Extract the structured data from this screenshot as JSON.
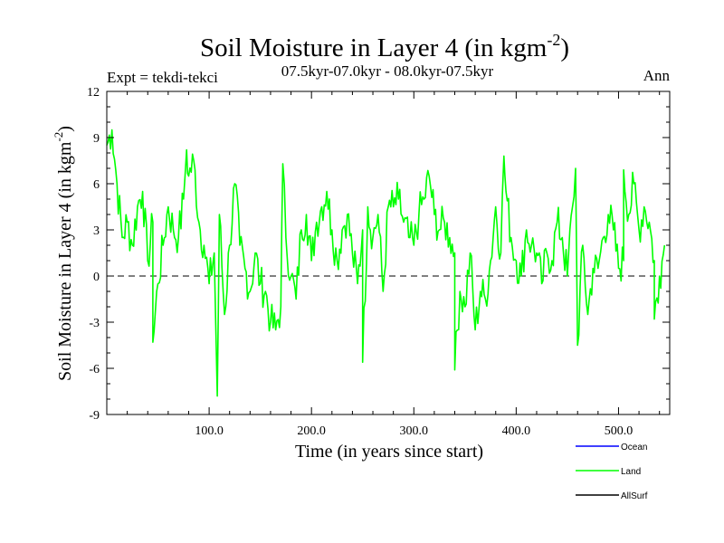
{
  "chart_data": {
    "type": "line",
    "title_main": "Soil Moisture in Layer 4 (in kgm",
    "title_sup": "-2",
    "title_close": ")",
    "subtitle": "07.5kyr-07.0kyr - 08.0kyr-07.5kyr",
    "expt_label": "Expt = tekdi-tekci",
    "season_label": "Ann",
    "xlabel": "Time (in years since start)",
    "ylabel_main": "Soil Moisture in Layer 4 (in kgm",
    "ylabel_sup": "-2",
    "ylabel_close": ")",
    "xlim": [
      0,
      550
    ],
    "ylim": [
      -9,
      12
    ],
    "x_ticks": [
      100,
      200,
      300,
      400,
      500
    ],
    "x_tick_labels": [
      "100.0",
      "200.0",
      "300.0",
      "400.0",
      "500.0"
    ],
    "y_ticks": [
      -9,
      -6,
      -3,
      0,
      3,
      6,
      9,
      12
    ],
    "y_tick_labels": [
      "-9",
      "-6",
      "-3",
      "0",
      "3",
      "6",
      "9",
      "12"
    ],
    "reference_line": 0,
    "series": [
      {
        "name": "Land",
        "color": "#00ff00",
        "x_start": 0,
        "x_step": 5,
        "values": [
          8.5,
          9.5,
          6.0,
          2.5,
          3.5,
          2.0,
          4.5,
          5.5,
          1.0,
          3.5,
          -0.5,
          2.0,
          4.5,
          3.0,
          2.5,
          5.0,
          6.5,
          7.5,
          3.5,
          2.0,
          -0.5,
          1.5,
          4.0,
          -2.5,
          2.0,
          6.0,
          2.0,
          0.5,
          -1.0,
          1.5,
          -0.5,
          -1.0,
          -3.0,
          -3.5,
          -2.0,
          2.5,
          0.0,
          -1.5,
          3.0,
          4.0,
          1.0,
          3.5,
          4.5,
          5.5,
          3.0,
          1.0,
          3.0,
          4.0,
          1.5,
          -0.5,
          3.0,
          4.5,
          2.5,
          4.0,
          -1.0,
          4.5,
          4.5,
          5.0,
          3.5,
          2.5,
          2.0,
          4.0,
          5.0,
          6.5,
          4.0,
          3.0,
          3.5,
          2.5,
          1.5,
          -1.0,
          -2.0,
          1.5,
          -3.5,
          -1.0,
          -1.5,
          1.0,
          4.5,
          1.5,
          5.5,
          2.5,
          1.0,
          0.0,
          3.0,
          2.0,
          1.5,
          -0.5,
          1.5,
          1.0,
          3.5,
          2.5,
          0.0,
          4.5,
          -4.5,
          2.0,
          -2.5,
          0.5,
          0.5,
          2.5,
          4.0,
          3.0,
          0.5,
          1.0,
          4.0,
          6.0,
          3.0,
          4.5,
          3.5,
          1.0,
          0.0,
          2.0
        ],
        "markers": [
          [
            45,
            -4.3
          ],
          [
            78,
            8.2
          ],
          [
            108,
            -7.8
          ],
          [
            172,
            7.3
          ],
          [
            250,
            -5.6
          ],
          [
            340,
            -6.1
          ],
          [
            388,
            7.8
          ],
          [
            458,
            7.0
          ],
          [
            505,
            6.9
          ],
          [
            535,
            -2.8
          ]
        ]
      }
    ],
    "legend": [
      {
        "name": "Ocean",
        "color": "#0000ff"
      },
      {
        "name": "Land",
        "color": "#00ff00"
      },
      {
        "name": "AllSurf",
        "color": "#000000"
      }
    ]
  }
}
